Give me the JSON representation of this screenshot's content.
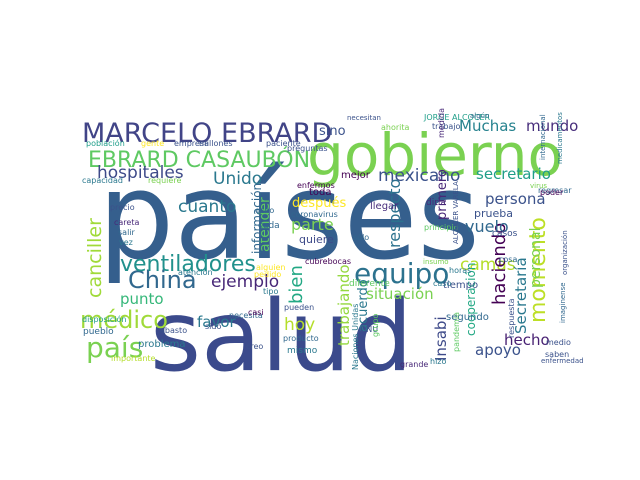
{
  "word_cloud": {
    "words": [
      {
        "text": "países",
        "color": "#355f8d"
      },
      {
        "text": "salud",
        "color": "#3b4a8c"
      },
      {
        "text": "gobierno",
        "color": "#7ad151"
      },
      {
        "text": "MARCELO EBRARD",
        "color": "#414487"
      },
      {
        "text": "EBRARD CASAUBÓN",
        "color": "#5ec962"
      },
      {
        "text": "equipo",
        "color": "#2c728e"
      },
      {
        "text": "China",
        "color": "#31688e"
      },
      {
        "text": "ventiladores",
        "color": "#21918c"
      },
      {
        "text": "médico",
        "color": "#a0da39"
      },
      {
        "text": "país",
        "color": "#7ad151"
      },
      {
        "text": "hospitales",
        "color": "#3e4a89"
      },
      {
        "text": "Unido",
        "color": "#2a788e"
      },
      {
        "text": "mexicano",
        "color": "#3b528b"
      },
      {
        "text": "camas",
        "color": "#b5de2b"
      },
      {
        "text": "Muchas",
        "color": "#26828e"
      },
      {
        "text": "mundo",
        "color": "#472d7b"
      },
      {
        "text": "secretario",
        "color": "#1f9e89"
      },
      {
        "text": "persona",
        "color": "#3b528b"
      },
      {
        "text": "momento",
        "color": "#bddf26"
      },
      {
        "text": "canciller",
        "color": "#a0da39"
      },
      {
        "text": "cuanto",
        "color": "#2a788e"
      },
      {
        "text": "respecto",
        "color": "#2c728e"
      },
      {
        "text": "parte",
        "color": "#7ad151"
      },
      {
        "text": "bien",
        "color": "#22a884"
      },
      {
        "text": "ejemplo",
        "color": "#482878"
      },
      {
        "text": "punto",
        "color": "#35b779"
      },
      {
        "text": "favor",
        "color": "#2a788e"
      },
      {
        "text": "hoy",
        "color": "#b5de2b"
      },
      {
        "text": "trabajando",
        "color": "#95d840"
      },
      {
        "text": "situación",
        "color": "#7ad151"
      },
      {
        "text": "haciendo",
        "color": "#440154"
      },
      {
        "text": "vuelo",
        "color": "#31688e"
      },
      {
        "text": "apoyo",
        "color": "#3b528b"
      },
      {
        "text": "hecho",
        "color": "#482173"
      },
      {
        "text": "Secretaría",
        "color": "#2a788e"
      },
      {
        "text": "personal",
        "color": "#7ad151"
      },
      {
        "text": "Insabi",
        "color": "#3e4a89"
      },
      {
        "text": "cooperación",
        "color": "#22a884"
      },
      {
        "text": "sino",
        "color": "#3b528b"
      },
      {
        "text": "atender",
        "color": "#5ec962"
      },
      {
        "text": "información",
        "color": "#31688e"
      },
      {
        "text": "después",
        "color": "#fde725"
      },
      {
        "text": "acuerdo",
        "color": "#2a788e"
      },
      {
        "text": "primero",
        "color": "#482878"
      },
      {
        "text": "prueba",
        "color": "#3b528b"
      },
      {
        "text": "quiere",
        "color": "#3e4a89"
      },
      {
        "text": "toda",
        "color": "#440154"
      },
      {
        "text": "mejor",
        "color": "#440154"
      },
      {
        "text": "llegar",
        "color": "#472d7b"
      },
      {
        "text": "tiempo",
        "color": "#3b528b"
      },
      {
        "text": "segundo",
        "color": "#31688e"
      },
      {
        "text": "problema",
        "color": "#2a788e"
      },
      {
        "text": "pueblo",
        "color": "#31688e"
      },
      {
        "text": "mismo",
        "color": "#2a788e"
      },
      {
        "text": "importante",
        "color": "#b5de2b"
      },
      {
        "text": "enfermos",
        "color": "#440154"
      },
      {
        "text": "cada",
        "color": "#31688e"
      },
      {
        "text": "caso",
        "color": "#2a788e"
      },
      {
        "text": "casos",
        "color": "#3b528b"
      },
      {
        "text": "cosa",
        "color": "#31688e"
      },
      {
        "text": "diría",
        "color": "#482878"
      },
      {
        "text": "diferente",
        "color": "#5ec962"
      },
      {
        "text": "cubrebocas",
        "color": "#440154"
      },
      {
        "text": "coronavirus",
        "color": "#31688e"
      },
      {
        "text": "preguntas",
        "color": "#3b528b"
      },
      {
        "text": "paciente",
        "color": "#3b528b"
      },
      {
        "text": "población",
        "color": "#1f9e89"
      },
      {
        "text": "gente",
        "color": "#fde725"
      },
      {
        "text": "empresa",
        "color": "#3b528b"
      },
      {
        "text": "millones",
        "color": "#3b528b"
      },
      {
        "text": "capacidad",
        "color": "#2a788e"
      },
      {
        "text": "requiere",
        "color": "#7ad151"
      },
      {
        "text": "precio",
        "color": "#3b528b"
      },
      {
        "text": "careta",
        "color": "#482878"
      },
      {
        "text": "salir",
        "color": "#31688e"
      },
      {
        "text": "vez",
        "color": "#2a788e"
      },
      {
        "text": "ocho",
        "color": "#31688e"
      },
      {
        "text": "sólo",
        "color": "#31688e"
      },
      {
        "text": "principio",
        "color": "#5ec962"
      },
      {
        "text": "alguien",
        "color": "#fde725"
      },
      {
        "text": "atención",
        "color": "#2a788e"
      },
      {
        "text": "pedido",
        "color": "#fde725"
      },
      {
        "text": "tipo",
        "color": "#2a788e"
      },
      {
        "text": "pueden",
        "color": "#3b528b"
      },
      {
        "text": "necesita",
        "color": "#31688e"
      },
      {
        "text": "casi",
        "color": "#440154"
      },
      {
        "text": "sido",
        "color": "#3b528b"
      },
      {
        "text": "disposición",
        "color": "#1f9e89"
      },
      {
        "text": "abasto",
        "color": "#3b528b"
      },
      {
        "text": "creo",
        "color": "#3b528b"
      },
      {
        "text": "producto",
        "color": "#31688e"
      },
      {
        "text": "Naciones Unidas",
        "color": "#2a788e"
      },
      {
        "text": "ONU",
        "color": "#3b528b"
      },
      {
        "text": "grupo",
        "color": "#5ec962"
      },
      {
        "text": "hizo",
        "color": "#2a788e"
      },
      {
        "text": "grande",
        "color": "#482878"
      },
      {
        "text": "insumo",
        "color": "#7ad151"
      },
      {
        "text": "horas",
        "color": "#2a788e"
      },
      {
        "text": "ALCOCER VARELA",
        "color": "#3b528b"
      },
      {
        "text": "JORGE ALCOCER",
        "color": "#1f9e89"
      },
      {
        "text": "necesitan",
        "color": "#3b528b"
      },
      {
        "text": "ahorita",
        "color": "#7ad151"
      },
      {
        "text": "trabajo",
        "color": "#3b528b"
      },
      {
        "text": "medida",
        "color": "#482878"
      },
      {
        "text": "algún",
        "color": "#31688e"
      },
      {
        "text": "internacional",
        "color": "#31688e"
      },
      {
        "text": "medicamentos",
        "color": "#2a788e"
      },
      {
        "text": "regresar",
        "color": "#31688e"
      },
      {
        "text": "virus",
        "color": "#7ad151"
      },
      {
        "text": "poder",
        "color": "#440154"
      },
      {
        "text": "organización",
        "color": "#3b528b"
      },
      {
        "text": "respuesta",
        "color": "#3b528b"
      },
      {
        "text": "pandemia",
        "color": "#5ec962"
      },
      {
        "text": "imaginense",
        "color": "#31688e"
      },
      {
        "text": "medio",
        "color": "#3b528b"
      },
      {
        "text": "saben",
        "color": "#3b528b"
      },
      {
        "text": "enfermedad",
        "color": "#3b528b"
      }
    ]
  }
}
